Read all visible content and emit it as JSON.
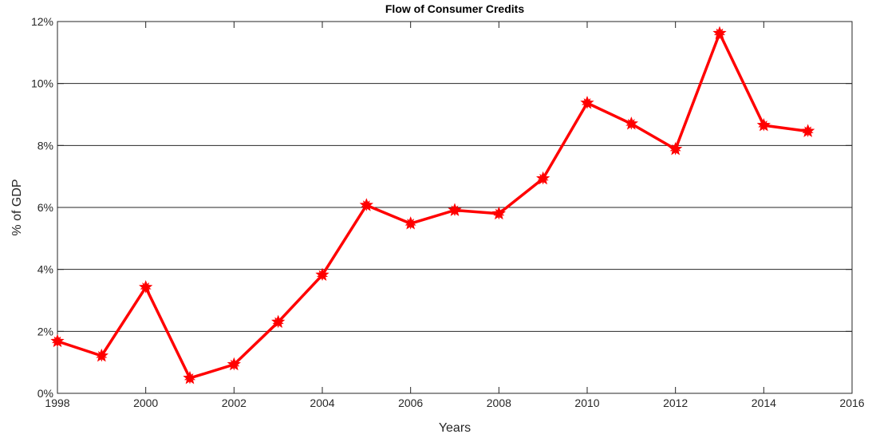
{
  "chart_data": {
    "type": "line",
    "title": "Flow of Consumer Credits",
    "xlabel": "Years",
    "ylabel": "% of GDP",
    "xlim": [
      1998,
      2016
    ],
    "ylim": [
      0,
      12
    ],
    "x_ticks": [
      1998,
      2000,
      2002,
      2004,
      2006,
      2008,
      2010,
      2012,
      2014,
      2016
    ],
    "y_ticks": [
      0,
      2,
      4,
      6,
      8,
      10,
      12
    ],
    "y_tick_suffix": "%",
    "grid": "horizontal",
    "series": [
      {
        "color": "#ff0000",
        "marker": "star",
        "x": [
          1998,
          1999,
          2000,
          2001,
          2002,
          2003,
          2004,
          2005,
          2006,
          2007,
          2008,
          2009,
          2010,
          2011,
          2012,
          2013,
          2014,
          2015
        ],
        "values": [
          1.68,
          1.21,
          3.42,
          0.49,
          0.93,
          2.3,
          3.82,
          6.07,
          5.48,
          5.91,
          5.8,
          6.93,
          9.37,
          8.7,
          7.88,
          11.62,
          8.65,
          8.46
        ]
      }
    ]
  }
}
